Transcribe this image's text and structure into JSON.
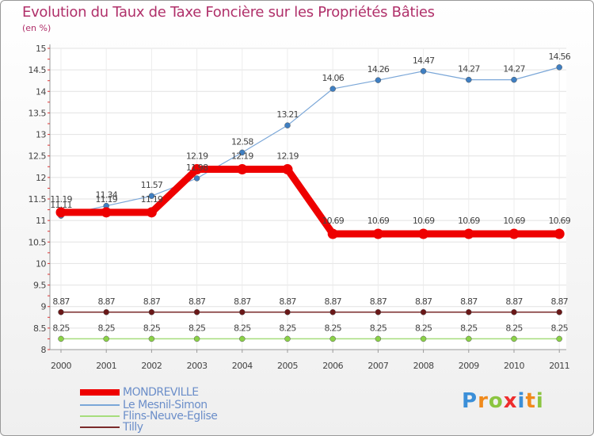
{
  "chart_data": {
    "type": "line",
    "title": "Evolution du Taux de Taxe Foncière sur les Propriétés Bâties",
    "unit": "(en %)",
    "categories": [
      "2000",
      "2001",
      "2002",
      "2003",
      "2004",
      "2005",
      "2006",
      "2007",
      "2008",
      "2009",
      "2010",
      "2011"
    ],
    "yticks": [
      "8",
      "8.5",
      "9",
      "9.5",
      "10",
      "10.5",
      "11",
      "11.5",
      "12",
      "12.5",
      "13",
      "13.5",
      "14",
      "14.5",
      "15"
    ],
    "ylim": [
      8,
      15
    ],
    "series": [
      {
        "name": "MONDREVILLE",
        "color": "#ee0000",
        "point_color": "#ee0000",
        "values": [
          11.19,
          11.19,
          11.19,
          12.19,
          12.19,
          12.19,
          10.69,
          10.69,
          10.69,
          10.69,
          10.69,
          10.69
        ],
        "labels": [
          "11.19",
          "11.19",
          "11.19",
          "12.19",
          "12.19",
          "12.19",
          "10.69",
          "10.69",
          "10.69",
          "10.69",
          "10.69",
          "10.69"
        ]
      },
      {
        "name": "Le Mesnil-Simon",
        "color": "#7ba7d8",
        "point_color": "#3f7fc2",
        "values": [
          11.11,
          11.34,
          11.57,
          11.98,
          12.58,
          13.21,
          14.06,
          14.26,
          14.47,
          14.27,
          14.27,
          14.56
        ],
        "labels": [
          "11.11",
          "11.34",
          "11.57",
          "11.98",
          "12.58",
          "13.21",
          "14.06",
          "14.26",
          "14.47",
          "14.27",
          "14.27",
          "14.56"
        ]
      },
      {
        "name": "Flins-Neuve-Eglise",
        "color": "#a6dd7c",
        "point_color": "#8bd247",
        "values": [
          8.25,
          8.25,
          8.25,
          8.25,
          8.25,
          8.25,
          8.25,
          8.25,
          8.25,
          8.25,
          8.25,
          8.25
        ],
        "labels": [
          "8.25",
          "8.25",
          "8.25",
          "8.25",
          "8.25",
          "8.25",
          "8.25",
          "8.25",
          "8.25",
          "8.25",
          "8.25",
          "8.25"
        ]
      },
      {
        "name": "Tilly",
        "color": "#7a2a2a",
        "point_color": "#6a1818",
        "values": [
          8.87,
          8.87,
          8.87,
          8.87,
          8.87,
          8.87,
          8.87,
          8.87,
          8.87,
          8.87,
          8.87,
          8.87
        ],
        "labels": [
          "8.87",
          "8.87",
          "8.87",
          "8.87",
          "8.87",
          "8.87",
          "8.87",
          "8.87",
          "8.87",
          "8.87",
          "8.87",
          "8.87"
        ]
      }
    ]
  },
  "logo": {
    "letters": [
      "P",
      "r",
      "o",
      "x",
      "i",
      "t",
      "i"
    ],
    "colors": [
      "#3b8fd8",
      "#f08a1c",
      "#8bc540",
      "#ee2d2d",
      "#3b8fd8",
      "#f08a1c",
      "#8bc540"
    ]
  }
}
